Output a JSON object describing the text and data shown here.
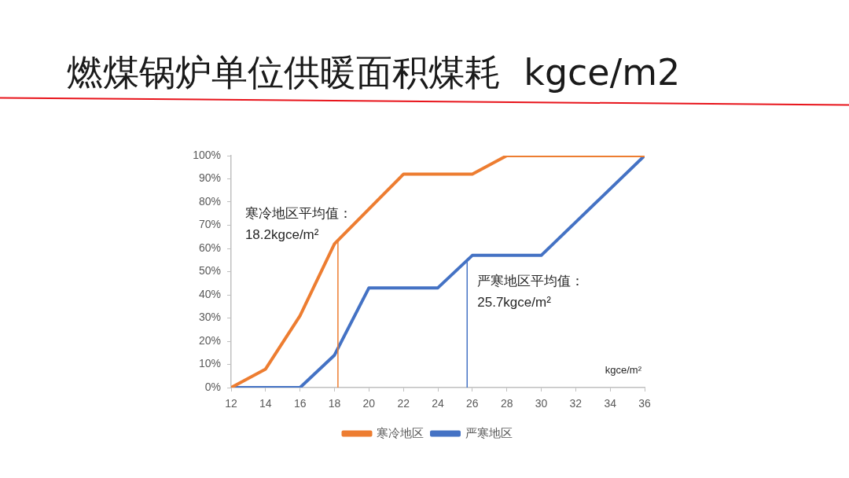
{
  "chart_data": {
    "type": "line",
    "title": "燃煤锅炉单位供暖面积煤耗  kgce/m2",
    "xlabel": "kgce/m²",
    "series": [
      {
        "name": "寒冷地区",
        "color": "#ed7d31",
        "x": [
          12,
          14,
          16,
          18,
          22,
          26,
          28,
          36
        ],
        "values": [
          0,
          8,
          31,
          62,
          92,
          92,
          100,
          100
        ]
      },
      {
        "name": "严寒地区",
        "color": "#4472c4",
        "x": [
          12,
          16,
          18,
          20,
          24,
          26,
          30,
          36
        ],
        "values": [
          0,
          0,
          14,
          43,
          43,
          57,
          57,
          100
        ]
      }
    ],
    "xlim": [
      12,
      36
    ],
    "xticks": [
      12,
      14,
      16,
      18,
      20,
      22,
      24,
      26,
      28,
      30,
      32,
      34,
      36
    ],
    "ylim": [
      0,
      100
    ],
    "yticks": [
      {
        "value": 0,
        "label": "0%"
      },
      {
        "value": 10,
        "label": "10%"
      },
      {
        "value": 20,
        "label": "20%"
      },
      {
        "value": 30,
        "label": "30%"
      },
      {
        "value": 40,
        "label": "40%"
      },
      {
        "value": 50,
        "label": "50%"
      },
      {
        "value": 60,
        "label": "60%"
      },
      {
        "value": 70,
        "label": "70%"
      },
      {
        "value": 80,
        "label": "80%"
      },
      {
        "value": 90,
        "label": "90%"
      },
      {
        "value": 100,
        "label": "100%"
      }
    ],
    "ref_lines": [
      {
        "axis": "x",
        "value": 18.2,
        "label": "寒冷地区平均值：\n18.2kgce/m²",
        "color": "#ed7d31"
      },
      {
        "axis": "x",
        "value": 25.7,
        "label": "严寒地区平均值：\n25.7kgce/m²",
        "color": "#4472c4"
      }
    ],
    "legend": "bottom",
    "grid": false,
    "marker": "none",
    "line_style": "solid"
  }
}
